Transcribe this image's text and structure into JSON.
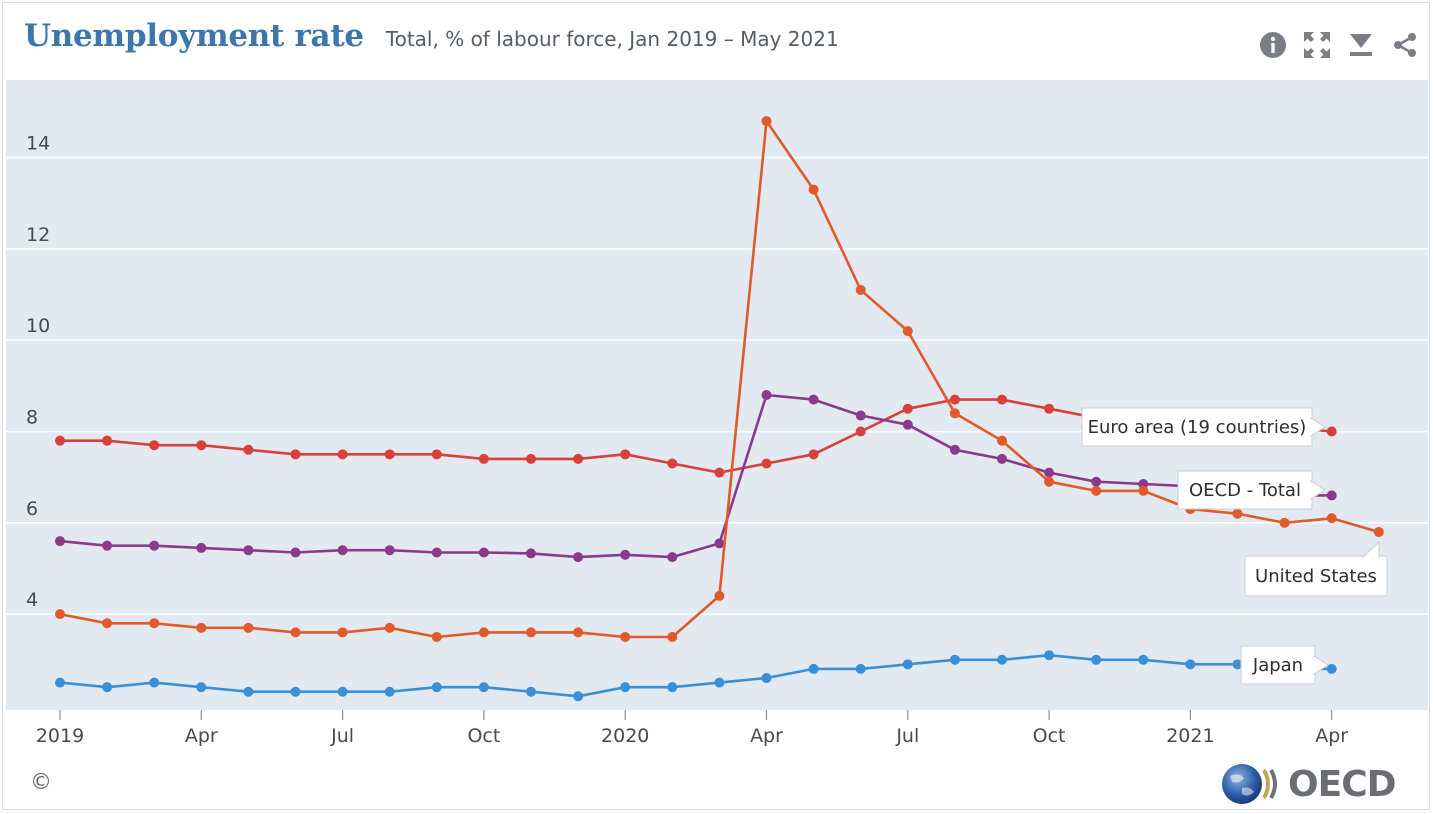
{
  "header": {
    "title": "Unemployment rate",
    "subtitle": "Total, % of labour force, Jan 2019 – May 2021"
  },
  "toolbar": {
    "icons": [
      "info-icon",
      "fullscreen-icon",
      "download-icon",
      "share-icon"
    ]
  },
  "footer": {
    "copyright": "©",
    "logo_text": "OECD"
  },
  "chart_data": {
    "type": "line",
    "title": "Unemployment rate",
    "subtitle": "Total, % of labour force, Jan 2019 – May 2021",
    "x": [
      "2019-01",
      "2019-02",
      "2019-03",
      "2019-04",
      "2019-05",
      "2019-06",
      "2019-07",
      "2019-08",
      "2019-09",
      "2019-10",
      "2019-11",
      "2019-12",
      "2020-01",
      "2020-02",
      "2020-03",
      "2020-04",
      "2020-05",
      "2020-06",
      "2020-07",
      "2020-08",
      "2020-09",
      "2020-10",
      "2020-11",
      "2020-12",
      "2021-01",
      "2021-02",
      "2021-03",
      "2021-04",
      "2021-05"
    ],
    "x_tick_labels": [
      {
        "month": "2019-01",
        "label": "2019"
      },
      {
        "month": "2019-04",
        "label": "Apr"
      },
      {
        "month": "2019-07",
        "label": "Jul"
      },
      {
        "month": "2019-10",
        "label": "Oct"
      },
      {
        "month": "2020-01",
        "label": "2020"
      },
      {
        "month": "2020-04",
        "label": "Apr"
      },
      {
        "month": "2020-07",
        "label": "Jul"
      },
      {
        "month": "2020-10",
        "label": "Oct"
      },
      {
        "month": "2021-01",
        "label": "2021"
      },
      {
        "month": "2021-04",
        "label": "Apr"
      }
    ],
    "y_ticks": [
      4,
      6,
      8,
      10,
      12,
      14
    ],
    "ylim": [
      1.9,
      15.7
    ],
    "grid": true,
    "legend": "inline labels at line ends",
    "series": [
      {
        "name": "Euro area (19 countries)",
        "color": "#d7413a",
        "values": [
          7.8,
          7.8,
          7.7,
          7.7,
          7.6,
          7.5,
          7.5,
          7.5,
          7.5,
          7.4,
          7.4,
          7.4,
          7.5,
          7.3,
          7.1,
          7.3,
          7.5,
          8.0,
          8.5,
          8.7,
          8.7,
          8.5,
          8.3,
          8.2,
          8.1,
          8.1,
          8.1,
          8.0,
          null
        ]
      },
      {
        "name": "OECD - Total",
        "color": "#8b3a8b",
        "values": [
          5.6,
          5.5,
          5.5,
          5.45,
          5.4,
          5.35,
          5.4,
          5.4,
          5.35,
          5.35,
          5.33,
          5.25,
          5.3,
          5.25,
          5.55,
          8.8,
          8.7,
          8.35,
          8.15,
          7.6,
          7.4,
          7.1,
          6.9,
          6.85,
          6.8,
          6.7,
          6.6,
          6.6,
          null
        ]
      },
      {
        "name": "United States",
        "color": "#e05a2b",
        "values": [
          4.0,
          3.8,
          3.8,
          3.7,
          3.7,
          3.6,
          3.6,
          3.7,
          3.5,
          3.6,
          3.6,
          3.6,
          3.5,
          3.5,
          4.4,
          14.8,
          13.3,
          11.1,
          10.2,
          8.4,
          7.8,
          6.9,
          6.7,
          6.7,
          6.3,
          6.2,
          6.0,
          6.1,
          5.8
        ]
      },
      {
        "name": "Japan",
        "color": "#3a90d8",
        "values": [
          2.5,
          2.4,
          2.5,
          2.4,
          2.3,
          2.3,
          2.3,
          2.3,
          2.4,
          2.4,
          2.3,
          2.2,
          2.4,
          2.4,
          2.5,
          2.6,
          2.8,
          2.8,
          2.9,
          3.0,
          3.0,
          3.1,
          3.0,
          3.0,
          2.9,
          2.9,
          2.8,
          2.8,
          null
        ]
      }
    ]
  }
}
